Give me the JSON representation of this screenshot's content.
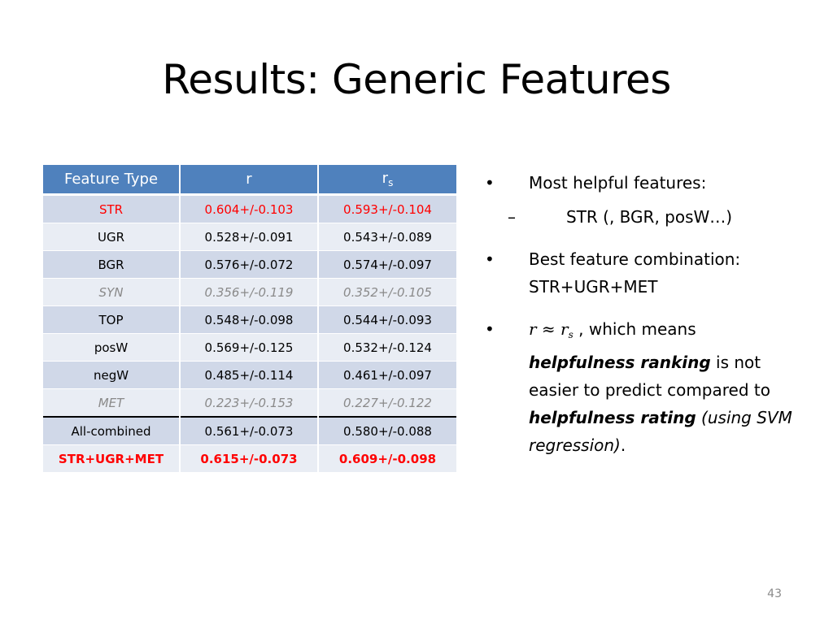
{
  "slide": {
    "title": "Results: Generic Features",
    "page_number": "43"
  },
  "table": {
    "headers": [
      "Feature Type",
      "r",
      "r",
      "s"
    ],
    "rows": [
      {
        "feature": "STR",
        "r": "0.604+/-0.103",
        "rs": "0.593+/-0.104"
      },
      {
        "feature": "UGR",
        "r": "0.528+/-0.091",
        "rs": "0.543+/-0.089"
      },
      {
        "feature": "BGR",
        "r": "0.576+/-0.072",
        "rs": "0.574+/-0.097"
      },
      {
        "feature": "SYN",
        "r": "0.356+/-0.119",
        "rs": "0.352+/-0.105"
      },
      {
        "feature": "TOP",
        "r": "0.548+/-0.098",
        "rs": "0.544+/-0.093"
      },
      {
        "feature": "posW",
        "r": "0.569+/-0.125",
        "rs": "0.532+/-0.124"
      },
      {
        "feature": "negW",
        "r": "0.485+/-0.114",
        "rs": "0.461+/-0.097"
      },
      {
        "feature": "MET",
        "r": "0.223+/-0.153",
        "rs": "0.227+/-0.122"
      },
      {
        "feature": "All-combined",
        "r": "0.561+/-0.073",
        "rs": "0.580+/-0.088"
      },
      {
        "feature": "STR+UGR+MET",
        "r": "0.615+/-0.073",
        "rs": "0.609+/-0.098"
      }
    ]
  },
  "bullets": {
    "b1": "Most helpful features:",
    "b1_sub": "STR (, BGR, posW…)",
    "b2_line1": "Best feature combination:",
    "b2_line2": "STR+UGR+MET",
    "b3_math_r": "r",
    "b3_math_approx": "≈",
    "b3_math_rs": "r",
    "b3_math_sub": "s",
    "b3_text1": ", which means",
    "b3_bold1": "helpfulness ranking",
    "b3_text2": "is not easier to predict compared to",
    "b3_bold2": "helpfulness rating",
    "b3_italic": "(using SVM regression)",
    "b3_end": "."
  },
  "colors": {
    "header_bg": "#4f81bd",
    "row_odd": "#d0d8e8",
    "row_even": "#e9edf4",
    "highlight": "#ff0000",
    "muted": "#8a8a8a"
  },
  "glyphs": {
    "bullet": "•",
    "dash": "–"
  }
}
